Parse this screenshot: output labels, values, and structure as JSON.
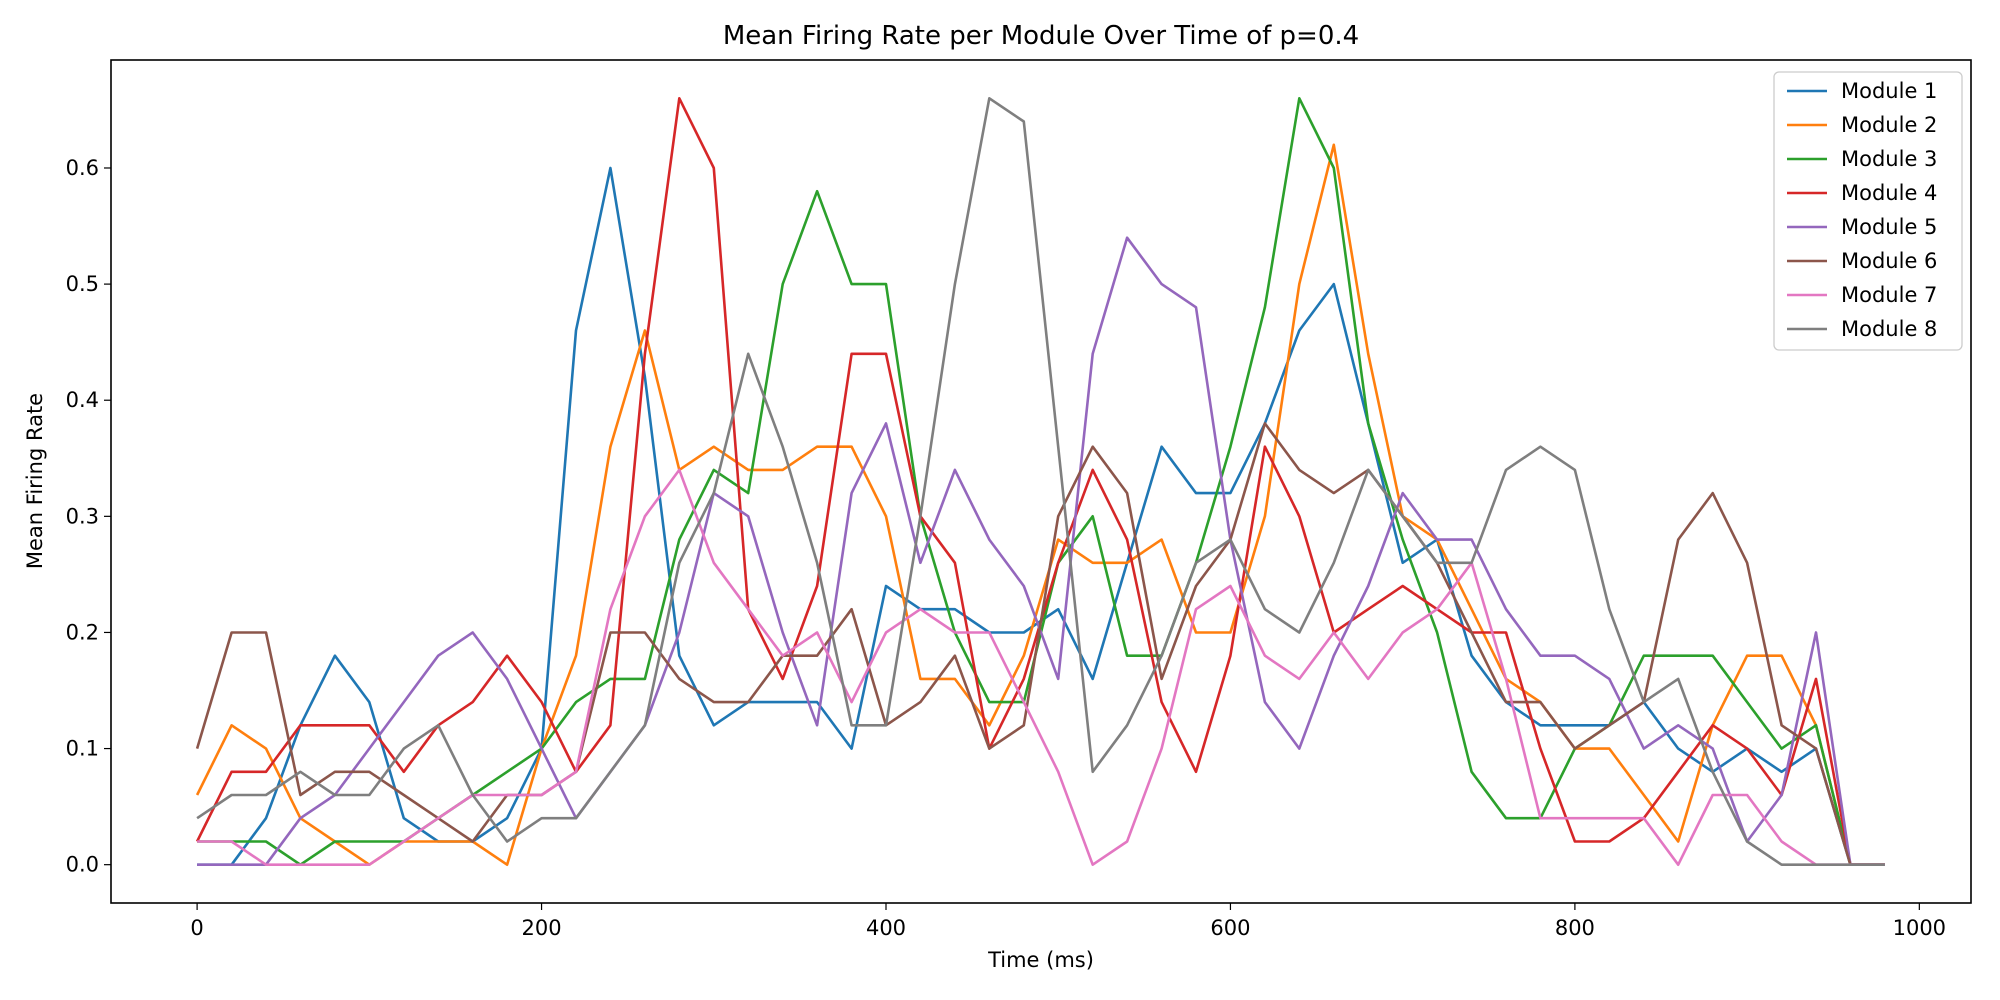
{
  "chart_data": {
    "type": "line",
    "title": "Mean Firing Rate per Module Over Time of p=0.4",
    "xlabel": "Time (ms)",
    "ylabel": "Mean Firing Rate",
    "xlim": [
      -50,
      1030
    ],
    "ylim": [
      -0.033,
      0.693
    ],
    "xticks": [
      0,
      200,
      400,
      600,
      800,
      1000
    ],
    "yticks": [
      0.0,
      0.1,
      0.2,
      0.3,
      0.4,
      0.5,
      0.6
    ],
    "ytick_labels": [
      "0.0",
      "0.1",
      "0.2",
      "0.3",
      "0.4",
      "0.5",
      "0.6"
    ],
    "grid": false,
    "legend_position": "top-right",
    "x": [
      0,
      20,
      40,
      60,
      80,
      100,
      120,
      140,
      160,
      180,
      200,
      220,
      240,
      260,
      280,
      300,
      320,
      340,
      360,
      380,
      400,
      420,
      440,
      460,
      480,
      500,
      520,
      540,
      560,
      580,
      600,
      620,
      640,
      660,
      680,
      700,
      720,
      740,
      760,
      780,
      800,
      820,
      840,
      860,
      880,
      900,
      920,
      940,
      960,
      980
    ],
    "series": [
      {
        "name": "Module 1",
        "color": "#1f77b4",
        "values": [
          0,
          0,
          0.04,
          0.12,
          0.18,
          0.14,
          0.04,
          0.02,
          0.02,
          0.04,
          0.1,
          0.46,
          0.6,
          0.42,
          0.18,
          0.12,
          0.14,
          0.14,
          0.14,
          0.1,
          0.24,
          0.22,
          0.22,
          0.2,
          0.2,
          0.22,
          0.16,
          0.26,
          0.36,
          0.32,
          0.32,
          0.38,
          0.46,
          0.5,
          0.38,
          0.26,
          0.28,
          0.18,
          0.14,
          0.12,
          0.12,
          0.12,
          0.14,
          0.1,
          0.08,
          0.1,
          0.08,
          0.1,
          0,
          0
        ]
      },
      {
        "name": "Module 2",
        "color": "#ff7f0e",
        "values": [
          0.06,
          0.12,
          0.1,
          0.04,
          0.02,
          0,
          0.02,
          0.02,
          0.02,
          0,
          0.1,
          0.18,
          0.36,
          0.46,
          0.34,
          0.36,
          0.34,
          0.34,
          0.36,
          0.36,
          0.3,
          0.16,
          0.16,
          0.12,
          0.18,
          0.28,
          0.26,
          0.26,
          0.28,
          0.2,
          0.2,
          0.3,
          0.5,
          0.62,
          0.44,
          0.3,
          0.28,
          0.22,
          0.16,
          0.14,
          0.1,
          0.1,
          0.06,
          0.02,
          0.12,
          0.18,
          0.18,
          0.12,
          0,
          0
        ]
      },
      {
        "name": "Module 3",
        "color": "#2ca02c",
        "values": [
          0.02,
          0.02,
          0.02,
          0,
          0.02,
          0.02,
          0.02,
          0.04,
          0.06,
          0.08,
          0.1,
          0.14,
          0.16,
          0.16,
          0.28,
          0.34,
          0.32,
          0.5,
          0.58,
          0.5,
          0.5,
          0.3,
          0.2,
          0.14,
          0.14,
          0.26,
          0.3,
          0.18,
          0.18,
          0.26,
          0.36,
          0.48,
          0.66,
          0.6,
          0.38,
          0.28,
          0.2,
          0.08,
          0.04,
          0.04,
          0.1,
          0.12,
          0.18,
          0.18,
          0.18,
          0.14,
          0.1,
          0.12,
          0,
          0
        ]
      },
      {
        "name": "Module 4",
        "color": "#d62728",
        "values": [
          0.02,
          0.08,
          0.08,
          0.12,
          0.12,
          0.12,
          0.08,
          0.12,
          0.14,
          0.18,
          0.14,
          0.08,
          0.12,
          0.44,
          0.66,
          0.6,
          0.22,
          0.16,
          0.24,
          0.44,
          0.44,
          0.3,
          0.26,
          0.1,
          0.16,
          0.26,
          0.34,
          0.28,
          0.14,
          0.08,
          0.18,
          0.36,
          0.3,
          0.2,
          0.22,
          0.24,
          0.22,
          0.2,
          0.2,
          0.1,
          0.02,
          0.02,
          0.04,
          0.08,
          0.12,
          0.1,
          0.06,
          0.16,
          0,
          0
        ]
      },
      {
        "name": "Module 5",
        "color": "#9467bd",
        "values": [
          0,
          0,
          0,
          0.04,
          0.06,
          0.1,
          0.14,
          0.18,
          0.2,
          0.16,
          0.1,
          0.04,
          0.08,
          0.12,
          0.2,
          0.32,
          0.3,
          0.2,
          0.12,
          0.32,
          0.38,
          0.26,
          0.34,
          0.28,
          0.24,
          0.16,
          0.44,
          0.54,
          0.5,
          0.48,
          0.28,
          0.14,
          0.1,
          0.18,
          0.24,
          0.32,
          0.28,
          0.28,
          0.22,
          0.18,
          0.18,
          0.16,
          0.1,
          0.12,
          0.1,
          0.02,
          0.06,
          0.2,
          0,
          0
        ]
      },
      {
        "name": "Module 6",
        "color": "#8c564b",
        "values": [
          0.1,
          0.2,
          0.2,
          0.06,
          0.08,
          0.08,
          0.06,
          0.04,
          0.02,
          0.06,
          0.06,
          0.08,
          0.2,
          0.2,
          0.16,
          0.14,
          0.14,
          0.18,
          0.18,
          0.22,
          0.12,
          0.14,
          0.18,
          0.1,
          0.12,
          0.3,
          0.36,
          0.32,
          0.16,
          0.24,
          0.28,
          0.38,
          0.34,
          0.32,
          0.34,
          0.3,
          0.26,
          0.2,
          0.14,
          0.14,
          0.1,
          0.12,
          0.14,
          0.28,
          0.32,
          0.26,
          0.12,
          0.1,
          0,
          0
        ]
      },
      {
        "name": "Module 7",
        "color": "#e377c2",
        "values": [
          0.02,
          0.02,
          0,
          0,
          0,
          0,
          0.02,
          0.04,
          0.06,
          0.06,
          0.06,
          0.08,
          0.22,
          0.3,
          0.34,
          0.26,
          0.22,
          0.18,
          0.2,
          0.14,
          0.2,
          0.22,
          0.2,
          0.2,
          0.14,
          0.08,
          0,
          0.02,
          0.1,
          0.22,
          0.24,
          0.18,
          0.16,
          0.2,
          0.16,
          0.2,
          0.22,
          0.26,
          0.16,
          0.04,
          0.04,
          0.04,
          0.04,
          0,
          0.06,
          0.06,
          0.02,
          0,
          0,
          0
        ]
      },
      {
        "name": "Module 8",
        "color": "#7f7f7f",
        "values": [
          0.04,
          0.06,
          0.06,
          0.08,
          0.06,
          0.06,
          0.1,
          0.12,
          0.06,
          0.02,
          0.04,
          0.04,
          0.08,
          0.12,
          0.26,
          0.32,
          0.44,
          0.36,
          0.26,
          0.12,
          0.12,
          0.3,
          0.5,
          0.66,
          0.64,
          0.36,
          0.08,
          0.12,
          0.18,
          0.26,
          0.28,
          0.22,
          0.2,
          0.26,
          0.34,
          0.3,
          0.26,
          0.26,
          0.34,
          0.36,
          0.34,
          0.22,
          0.14,
          0.16,
          0.08,
          0.02,
          0,
          0,
          0,
          0
        ]
      }
    ]
  }
}
